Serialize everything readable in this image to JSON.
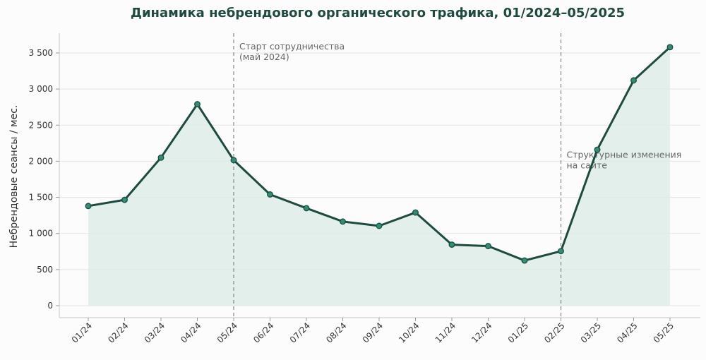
{
  "chart_data": {
    "type": "line",
    "title": "Динамика небрендового органического трафика, 01/2024–05/2025",
    "xlabel": "",
    "ylabel": "Небрендовые сеансы / мес.",
    "categories": [
      "01/24",
      "02/24",
      "03/24",
      "04/24",
      "05/24",
      "06/24",
      "07/24",
      "08/24",
      "09/24",
      "10/24",
      "11/24",
      "12/24",
      "01/25",
      "02/25",
      "03/25",
      "04/25",
      "05/25"
    ],
    "series": [
      {
        "values": [
          1380,
          1465,
          2050,
          2790,
          2015,
          1540,
          1350,
          1165,
          1105,
          1290,
          845,
          825,
          625,
          755,
          2160,
          3120,
          3580
        ],
        "color": "#1d4b40",
        "marker_color": "#2f8f75",
        "fill_color": "#dcebe6"
      }
    ],
    "ylim": [
      -180,
      3750
    ],
    "yticks": [
      0,
      500,
      1000,
      1500,
      2000,
      2500,
      3000,
      3500
    ],
    "ytick_labels": [
      "0",
      "500",
      "1 000",
      "1 500",
      "2 000",
      "2 500",
      "3 000",
      "3 500"
    ],
    "grid": true,
    "annotations": [
      {
        "category_index": 4,
        "lines": [
          "Старт сотрудничества",
          "(май 2024)"
        ],
        "label_level": 3550
      },
      {
        "category_index": 13,
        "lines": [
          "Структурные изменения",
          "на сайте"
        ],
        "label_level": 2050
      }
    ]
  }
}
